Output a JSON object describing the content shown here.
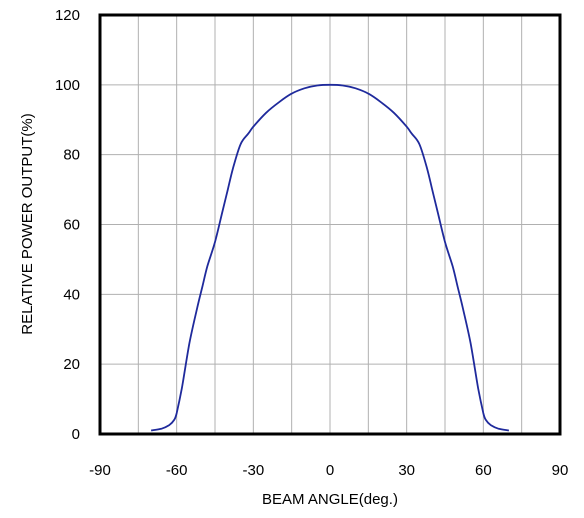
{
  "chart_data": {
    "type": "line",
    "title": "",
    "xlabel": "BEAM ANGLE(deg.)",
    "ylabel": "RELATIVE POWER OUTPUT(%)",
    "xlim": [
      -90,
      90
    ],
    "ylim": [
      0,
      120
    ],
    "x_ticks": [
      "-90",
      "-60",
      "-30",
      "0",
      "30",
      "60",
      "90"
    ],
    "y_ticks": [
      "0",
      "20",
      "40",
      "60",
      "80",
      "100",
      "120"
    ],
    "x_grid_step": 15,
    "y_grid_step": 20,
    "grid": true,
    "legend": "none",
    "series": [
      {
        "color": "#1f2a9c",
        "x": [
          -70,
          -66,
          -63,
          -61,
          -60,
          -58,
          -55,
          -52,
          -50,
          -48,
          -45,
          -42,
          -40,
          -38,
          -35,
          -32,
          -30,
          -25,
          -20,
          -15,
          -10,
          -5,
          0,
          5,
          10,
          15,
          20,
          25,
          30,
          32,
          35,
          38,
          40,
          42,
          45,
          48,
          50,
          52,
          55,
          58,
          60,
          61,
          63,
          66,
          70
        ],
        "y": [
          1,
          1.5,
          2.5,
          4,
          6,
          13,
          26,
          36,
          42,
          48,
          55,
          64,
          70,
          76,
          83,
          86,
          88,
          92,
          95,
          97.5,
          99,
          99.8,
          100,
          99.8,
          99,
          97.5,
          95,
          92,
          88,
          86,
          83,
          76,
          70,
          64,
          55,
          48,
          42,
          36,
          26,
          13,
          6,
          4,
          2.5,
          1.5,
          1
        ]
      }
    ],
    "colors": {
      "grid": "#b0b0b0",
      "frame": "#000000",
      "line": "#1f2a9c"
    }
  }
}
